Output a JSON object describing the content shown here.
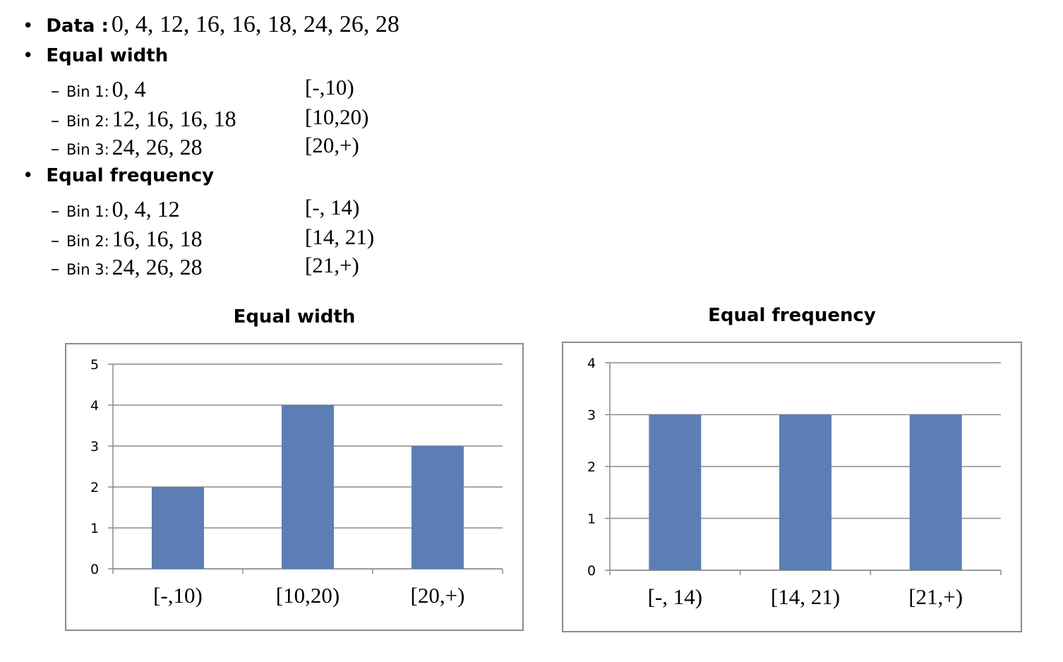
{
  "data_line": {
    "label": "Data :",
    "values": "0, 4, 12, 16, 16, 18, 24, 26, 28"
  },
  "sections": [
    {
      "heading": "Equal width",
      "bins": [
        {
          "label": "Bin 1:",
          "values": "0, 4",
          "interval": "[-,10)"
        },
        {
          "label": "Bin 2:",
          "values": "12, 16, 16, 18",
          "interval": "[10,20)"
        },
        {
          "label": "Bin 3:",
          "values": "24, 26, 28",
          "interval": "[20,+)"
        }
      ]
    },
    {
      "heading": "Equal frequency",
      "bins": [
        {
          "label": "Bin 1:",
          "values": "0, 4, 12",
          "interval": "[-, 14)"
        },
        {
          "label": "Bin 2:",
          "values": "16, 16, 18",
          "interval": "[14, 21)"
        },
        {
          "label": "Bin 3:",
          "values": "24, 26, 28",
          "interval": "[21,+)"
        }
      ]
    }
  ],
  "chart_data": [
    {
      "type": "bar",
      "title": "Equal width",
      "categories": [
        "[-,10)",
        "[10,20)",
        "[20,+)"
      ],
      "values": [
        2,
        4,
        3
      ],
      "ylim": [
        0,
        5
      ],
      "yticks": [
        "0",
        "1",
        "2",
        "3",
        "4",
        "5"
      ],
      "xlabel": "",
      "ylabel": "",
      "grid": true,
      "bar_color": "#5b7fb5"
    },
    {
      "type": "bar",
      "title": "Equal frequency",
      "categories": [
        "[-, 14)",
        "[14, 21)",
        "[21,+)"
      ],
      "values": [
        3,
        3,
        3
      ],
      "ylim": [
        0,
        4
      ],
      "yticks": [
        "0",
        "1",
        "2",
        "3",
        "4"
      ],
      "xlabel": "",
      "ylabel": "",
      "grid": true,
      "bar_color": "#5b7fb5"
    }
  ]
}
